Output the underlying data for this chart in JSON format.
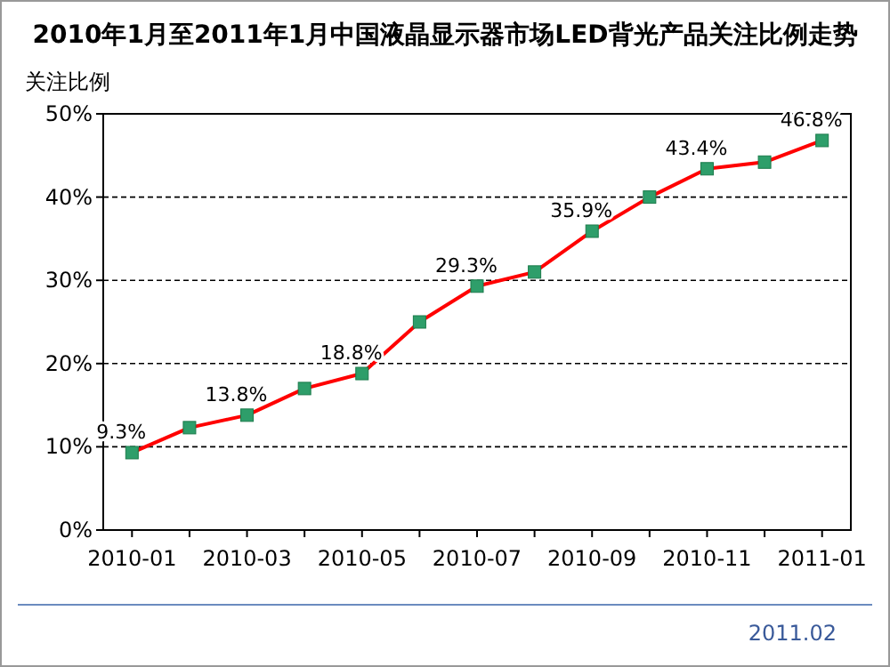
{
  "chart_data": {
    "type": "line",
    "title": "2010年1月至2011年1月中国液晶显示器市场LED背光产品关注比例走势",
    "ylabel": "关注比例",
    "categories": [
      "2010-01",
      null,
      "2010-03",
      null,
      "2010-05",
      null,
      "2010-07",
      null,
      "2010-09",
      null,
      "2010-11",
      null,
      "2011-01"
    ],
    "series": [
      {
        "color": "#ff0000",
        "values": [
          9.3,
          12.3,
          13.8,
          17.0,
          18.8,
          25.0,
          29.3,
          31.0,
          35.9,
          40.0,
          43.4,
          44.2,
          46.8
        ],
        "value_labels": [
          "9.3%",
          null,
          "13.8%",
          null,
          "18.8%",
          null,
          "29.3%",
          null,
          "35.9%",
          null,
          "43.4%",
          null,
          "46.8%"
        ]
      }
    ],
    "ylim": [
      0,
      50
    ],
    "yticks": [
      {
        "value": 0,
        "label": "0%"
      },
      {
        "value": 10,
        "label": "10%"
      },
      {
        "value": 20,
        "label": "20%"
      },
      {
        "value": 30,
        "label": "30%"
      },
      {
        "value": 40,
        "label": "40%"
      },
      {
        "value": 50,
        "label": "50%"
      }
    ],
    "grid": "y",
    "marker": "square",
    "line_style": "solid",
    "annotations": [
      "2011.02"
    ]
  }
}
